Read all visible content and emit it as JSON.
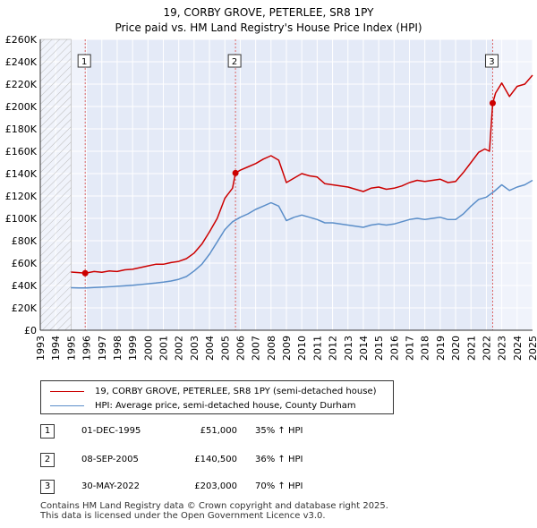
{
  "chart_data": {
    "type": "line",
    "title": "19, CORBY GROVE, PETERLEE, SR8 1PY",
    "subtitle": "Price paid vs. HM Land Registry's House Price Index (HPI)",
    "xlim": [
      1993,
      2025
    ],
    "ylim": [
      0,
      260000
    ],
    "x_ticks": [
      "1993",
      "1994",
      "1995",
      "1996",
      "1997",
      "1998",
      "1999",
      "2000",
      "2001",
      "2002",
      "2003",
      "2004",
      "2005",
      "2006",
      "2007",
      "2008",
      "2009",
      "2010",
      "2011",
      "2012",
      "2013",
      "2014",
      "2015",
      "2016",
      "2017",
      "2018",
      "2019",
      "2020",
      "2021",
      "2022",
      "2023",
      "2024",
      "2025"
    ],
    "y_ticks": [
      "£0",
      "£20K",
      "£40K",
      "£60K",
      "£80K",
      "£100K",
      "£120K",
      "£140K",
      "£160K",
      "£180K",
      "£200K",
      "£220K",
      "£240K",
      "£260K"
    ],
    "y_tick_values": [
      0,
      20000,
      40000,
      60000,
      80000,
      100000,
      120000,
      140000,
      160000,
      180000,
      200000,
      220000,
      240000,
      260000
    ],
    "grid": true,
    "hatched_region_until": 1995,
    "series": [
      {
        "name": "19, CORBY GROVE, PETERLEE, SR8 1PY (semi-detached house)",
        "color": "#cc0000",
        "points": [
          [
            1995,
            52000
          ],
          [
            1995.5,
            51500
          ],
          [
            1995.92,
            51000
          ],
          [
            1996.5,
            52500
          ],
          [
            1997,
            51800
          ],
          [
            1997.5,
            53000
          ],
          [
            1998,
            52500
          ],
          [
            1998.5,
            54000
          ],
          [
            1999,
            54500
          ],
          [
            1999.5,
            56000
          ],
          [
            2000,
            57500
          ],
          [
            2000.5,
            59000
          ],
          [
            2001,
            59000
          ],
          [
            2001.5,
            60500
          ],
          [
            2002,
            61500
          ],
          [
            2002.5,
            64000
          ],
          [
            2003,
            69000
          ],
          [
            2003.5,
            77000
          ],
          [
            2004,
            88000
          ],
          [
            2004.5,
            100000
          ],
          [
            2005,
            118000
          ],
          [
            2005.5,
            127000
          ],
          [
            2005.69,
            140500
          ],
          [
            2006,
            143000
          ],
          [
            2006.5,
            146000
          ],
          [
            2007,
            149000
          ],
          [
            2007.5,
            153000
          ],
          [
            2008,
            156000
          ],
          [
            2008.5,
            152000
          ],
          [
            2009,
            132000
          ],
          [
            2009.5,
            136000
          ],
          [
            2010,
            140000
          ],
          [
            2010.5,
            138000
          ],
          [
            2011,
            137000
          ],
          [
            2011.5,
            131000
          ],
          [
            2012,
            130000
          ],
          [
            2012.5,
            129000
          ],
          [
            2013,
            128000
          ],
          [
            2013.5,
            126000
          ],
          [
            2014,
            124000
          ],
          [
            2014.5,
            127000
          ],
          [
            2015,
            128000
          ],
          [
            2015.5,
            126000
          ],
          [
            2016,
            127000
          ],
          [
            2016.5,
            129000
          ],
          [
            2017,
            132000
          ],
          [
            2017.5,
            134000
          ],
          [
            2018,
            133000
          ],
          [
            2018.5,
            134000
          ],
          [
            2019,
            135000
          ],
          [
            2019.5,
            132000
          ],
          [
            2020,
            133000
          ],
          [
            2020.5,
            141000
          ],
          [
            2021,
            150000
          ],
          [
            2021.5,
            159000
          ],
          [
            2021.9,
            162000
          ],
          [
            2022.2,
            160000
          ],
          [
            2022.41,
            203000
          ],
          [
            2022.6,
            212000
          ],
          [
            2023,
            221000
          ],
          [
            2023.5,
            209000
          ],
          [
            2024,
            218000
          ],
          [
            2024.5,
            220000
          ],
          [
            2025,
            228000
          ]
        ]
      },
      {
        "name": "HPI: Average price, semi-detached house, County Durham",
        "color": "#5b8ec9",
        "points": [
          [
            1995,
            38000
          ],
          [
            1995.5,
            37800
          ],
          [
            1996,
            37800
          ],
          [
            1996.5,
            38200
          ],
          [
            1997,
            38500
          ],
          [
            1997.5,
            38900
          ],
          [
            1998,
            39300
          ],
          [
            1998.5,
            39700
          ],
          [
            1999,
            40200
          ],
          [
            1999.5,
            40800
          ],
          [
            2000,
            41500
          ],
          [
            2000.5,
            42200
          ],
          [
            2001,
            43000
          ],
          [
            2001.5,
            44000
          ],
          [
            2002,
            45500
          ],
          [
            2002.5,
            48000
          ],
          [
            2003,
            53000
          ],
          [
            2003.5,
            59000
          ],
          [
            2004,
            68000
          ],
          [
            2004.5,
            79000
          ],
          [
            2005,
            90000
          ],
          [
            2005.5,
            97000
          ],
          [
            2006,
            101000
          ],
          [
            2006.5,
            104000
          ],
          [
            2007,
            108000
          ],
          [
            2007.5,
            111000
          ],
          [
            2008,
            114000
          ],
          [
            2008.5,
            111000
          ],
          [
            2009,
            98000
          ],
          [
            2009.5,
            101000
          ],
          [
            2010,
            103000
          ],
          [
            2010.5,
            101000
          ],
          [
            2011,
            99000
          ],
          [
            2011.5,
            96000
          ],
          [
            2012,
            96000
          ],
          [
            2012.5,
            95000
          ],
          [
            2013,
            94000
          ],
          [
            2013.5,
            93000
          ],
          [
            2014,
            92000
          ],
          [
            2014.5,
            94000
          ],
          [
            2015,
            95000
          ],
          [
            2015.5,
            94000
          ],
          [
            2016,
            95000
          ],
          [
            2016.5,
            97000
          ],
          [
            2017,
            99000
          ],
          [
            2017.5,
            100000
          ],
          [
            2018,
            99000
          ],
          [
            2018.5,
            100000
          ],
          [
            2019,
            101000
          ],
          [
            2019.5,
            99000
          ],
          [
            2020,
            99000
          ],
          [
            2020.5,
            104000
          ],
          [
            2021,
            111000
          ],
          [
            2021.5,
            117000
          ],
          [
            2022,
            119000
          ],
          [
            2022.5,
            124000
          ],
          [
            2023,
            130000
          ],
          [
            2023.5,
            125000
          ],
          [
            2024,
            128000
          ],
          [
            2024.5,
            130000
          ],
          [
            2025,
            134000
          ]
        ]
      }
    ],
    "transactions": [
      {
        "label": "1",
        "x": 1995.92,
        "y": 51000
      },
      {
        "label": "2",
        "x": 2005.69,
        "y": 140500
      },
      {
        "label": "3",
        "x": 2022.41,
        "y": 203000
      }
    ]
  },
  "legend": {
    "property_label": "19, CORBY GROVE, PETERLEE, SR8 1PY (semi-detached house)",
    "hpi_label": "HPI: Average price, semi-detached house, County Durham"
  },
  "table": [
    {
      "num": "1",
      "date": "01-DEC-1995",
      "price": "£51,000",
      "hpi": "35% ↑ HPI"
    },
    {
      "num": "2",
      "date": "08-SEP-2005",
      "price": "£140,500",
      "hpi": "36% ↑ HPI"
    },
    {
      "num": "3",
      "date": "30-MAY-2022",
      "price": "£203,000",
      "hpi": "70% ↑ HPI"
    }
  ],
  "footer": {
    "line1": "Contains HM Land Registry data © Crown copyright and database right 2025.",
    "line2": "This data is licensed under the Open Government Licence v3.0."
  }
}
